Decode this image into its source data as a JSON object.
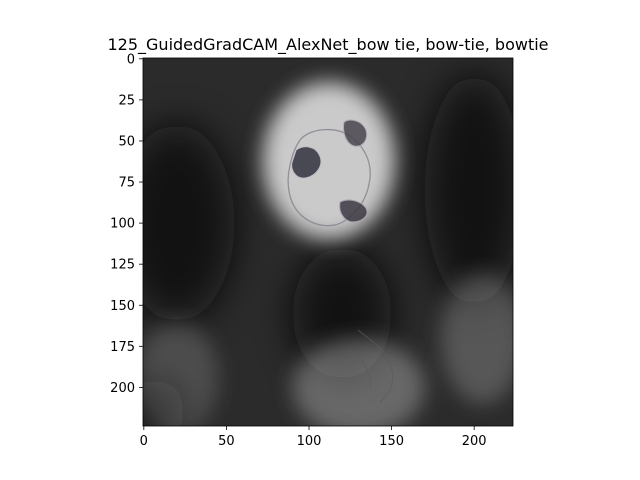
{
  "chart_data": {
    "type": "heatmap",
    "title": "125_GuidedGradCAM_AlexNet_bow tie, bow-tie, bowtie",
    "xlabel": "",
    "ylabel": "",
    "xlim": [
      -0.5,
      223.5
    ],
    "ylim": [
      223.5,
      -0.5
    ],
    "xticks": [
      0,
      50,
      100,
      150,
      200
    ],
    "yticks": [
      0,
      25,
      50,
      75,
      100,
      125,
      150,
      175,
      200
    ],
    "xtick_labels": [
      "0",
      "50",
      "100",
      "150",
      "200"
    ],
    "ytick_labels": [
      "0",
      "25",
      "50",
      "75",
      "100",
      "125",
      "150",
      "175",
      "200"
    ],
    "image_size": [
      224,
      224
    ],
    "colormap": "gray",
    "background_color": "#2b2b2b",
    "highlight_color": "#dcdcdc",
    "description_regions": [
      {
        "cx": 112,
        "cy": 62,
        "rx": 40,
        "ry": 48,
        "intensity": 0.9
      },
      {
        "cx": 130,
        "cy": 200,
        "rx": 40,
        "ry": 30,
        "intensity": 0.35
      },
      {
        "cx": 20,
        "cy": 195,
        "rx": 25,
        "ry": 35,
        "intensity": 0.2
      },
      {
        "cx": 205,
        "cy": 170,
        "rx": 25,
        "ry": 40,
        "intensity": 0.25
      }
    ],
    "dark_regions": [
      {
        "cx": 20,
        "cy": 100,
        "rx": 35,
        "ry": 60
      },
      {
        "cx": 200,
        "cy": 80,
        "rx": 30,
        "ry": 70
      },
      {
        "cx": 120,
        "cy": 155,
        "rx": 30,
        "ry": 40
      },
      {
        "cx": 5,
        "cy": 215,
        "rx": 20,
        "ry": 20
      }
    ]
  }
}
